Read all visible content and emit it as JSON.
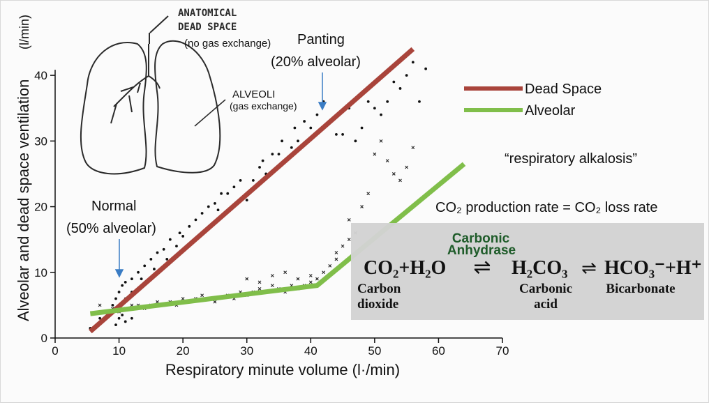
{
  "chart_data": {
    "type": "scatter",
    "xlabel": "Respiratory minute volume (l·/min)",
    "ylabel": "Alveolar and dead space ventilation",
    "ylabel_unit": "(l/min)",
    "xlim": [
      0,
      70
    ],
    "ylim": [
      0,
      45
    ],
    "xticks": [
      "0",
      "10",
      "20",
      "30",
      "40",
      "50",
      "60",
      "70"
    ],
    "yticks": [
      "0",
      "10",
      "20",
      "30",
      "40"
    ],
    "grid": false,
    "legend_position": "right",
    "series": [
      {
        "name": "Dead Space",
        "type": "line",
        "color": "#a9443b",
        "x": [
          5.5,
          56
        ],
        "y": [
          1,
          44
        ]
      },
      {
        "name": "Alveolar",
        "type": "line",
        "color": "#80be4a",
        "x": [
          5.5,
          41,
          64
        ],
        "y": [
          3.7,
          8,
          26.5
        ]
      },
      {
        "name": "dead-space-points",
        "marker": "dot",
        "x": [
          5.5,
          7,
          8,
          9,
          9.5,
          10,
          10.5,
          11,
          11,
          12,
          12,
          13,
          13.5,
          14,
          15,
          15.5,
          16,
          17,
          17.5,
          18,
          19,
          19.5,
          20,
          21,
          22,
          23,
          24,
          25,
          25.5,
          26,
          27,
          28,
          29,
          30,
          31,
          32,
          32.5,
          33,
          34,
          35,
          35.5,
          36,
          37,
          37.5,
          38,
          39,
          40,
          41,
          42,
          43,
          44,
          45,
          46,
          47,
          48,
          49,
          50,
          51,
          52,
          53,
          54,
          55,
          56,
          57,
          58,
          10,
          11,
          12,
          9.5,
          10.5
        ],
        "y": [
          1.5,
          3,
          4,
          5,
          6,
          7,
          8,
          8.5,
          6,
          9,
          7,
          10,
          9,
          11,
          12,
          10.5,
          13,
          13.5,
          12,
          15,
          14,
          16,
          15.5,
          17,
          18,
          19,
          20,
          20.5,
          19.5,
          22,
          22,
          23,
          24,
          21,
          24,
          26,
          27,
          25,
          28,
          28,
          30,
          27,
          29,
          32,
          30,
          33,
          32,
          34,
          36,
          33,
          31,
          31,
          35,
          30,
          32,
          36,
          35,
          34,
          36,
          39,
          38,
          40,
          42,
          36,
          41,
          3,
          2.5,
          3,
          2,
          3.5
        ]
      },
      {
        "name": "alveolar-points",
        "marker": "x",
        "x": [
          7,
          9,
          10,
          11,
          12,
          13,
          14,
          15,
          16,
          17,
          18,
          19,
          20,
          21,
          22,
          23,
          24,
          25,
          27,
          28,
          29,
          30,
          31,
          32,
          33,
          34,
          35,
          36,
          37,
          38,
          39,
          40,
          41,
          42,
          43,
          44,
          45,
          46,
          47,
          48,
          49,
          50,
          51,
          52,
          53,
          54,
          55,
          56,
          30,
          32,
          34,
          36,
          38,
          40,
          44,
          46
        ],
        "y": [
          5,
          4.5,
          4,
          4.5,
          5,
          5,
          4.5,
          5,
          5.5,
          5,
          5.5,
          5,
          6,
          5.5,
          6,
          6.5,
          6,
          5.5,
          6.5,
          6,
          7,
          6.5,
          7,
          7.5,
          7,
          8,
          7.5,
          7,
          8,
          7.5,
          8,
          8.5,
          9,
          10,
          11,
          12,
          14,
          18,
          16,
          20,
          22,
          28,
          30,
          27,
          25,
          24,
          26,
          29,
          9,
          8.5,
          9.5,
          10,
          9,
          9.5,
          13,
          15
        ]
      }
    ],
    "annotations": {
      "anatomical_dead_space_line1": "ANATOMICAL",
      "anatomical_dead_space_line2": "DEAD SPACE",
      "no_gas_exchange": "(no gas exchange)",
      "alveoli": "ALVEOLI",
      "gas_exchange": "(gas exchange)",
      "panting": "Panting",
      "panting_pct": "(20% alveolar)",
      "normal": "Normal",
      "normal_pct": "(50% alveolar)",
      "respiratory_alkalosis": "“respiratory alkalosis”",
      "co2_rate": "CO₂ production rate = CO₂ loss rate"
    },
    "equation": {
      "enzyme_line1": "Carbonic",
      "enzyme_line2": "Anhydrase",
      "reactants": "CO₂+H₂O",
      "arrow1": "⇌",
      "intermediate": "H₂CO₃",
      "arrow2": "⇌",
      "products": "HCO₃⁻+H⁺",
      "label_co2_line1": "Carbon",
      "label_co2_line2": "dioxide",
      "label_h2co3_line1": "Carbonic",
      "label_h2co3_line2": "acid",
      "label_hco3": "Bicarbonate"
    }
  }
}
